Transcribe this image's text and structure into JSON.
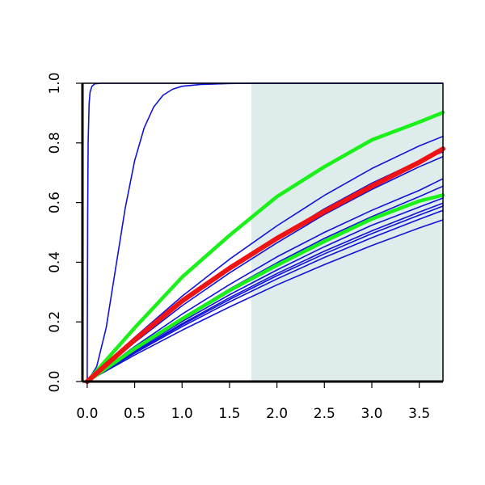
{
  "chart_data": {
    "type": "line",
    "title": "",
    "xlabel": "",
    "ylabel": "",
    "xlim": [
      -0.05,
      3.75
    ],
    "ylim": [
      0.0,
      1.0
    ],
    "x_ticks": [
      0.0,
      0.5,
      1.0,
      1.5,
      2.0,
      2.5,
      3.0,
      3.5
    ],
    "x_tick_labels": [
      "0.0",
      "0.5",
      "1.0",
      "1.5",
      "2.0",
      "2.5",
      "3.0",
      "3.5"
    ],
    "y_ticks": [
      0.0,
      0.2,
      0.4,
      0.6,
      0.8,
      1.0
    ],
    "y_tick_labels": [
      "0.0",
      "0.2",
      "0.4",
      "0.6",
      "0.8",
      "1.0"
    ],
    "shaded_region": {
      "x_from": 1.73,
      "x_to": 3.75,
      "color": "#deeceb"
    },
    "colors": {
      "blue": "#1212d8",
      "green": "#19f119",
      "red": "#f01313"
    },
    "series": [
      {
        "color": "#1212d8",
        "width": 1.6,
        "x": [
          0,
          0.005,
          0.01,
          0.02,
          0.03,
          0.05,
          0.08,
          0.15,
          3.75
        ],
        "y": [
          0,
          0.55,
          0.8,
          0.93,
          0.97,
          0.99,
          0.998,
          1.0,
          1.0
        ]
      },
      {
        "color": "#1212d8",
        "width": 1.6,
        "x": [
          0,
          0.1,
          0.2,
          0.3,
          0.4,
          0.5,
          0.6,
          0.7,
          0.8,
          0.9,
          1.0,
          1.2,
          1.5,
          1.8,
          3.75
        ],
        "y": [
          0,
          0.05,
          0.18,
          0.38,
          0.58,
          0.74,
          0.85,
          0.92,
          0.96,
          0.98,
          0.99,
          0.996,
          0.999,
          1.0,
          1.0
        ]
      },
      {
        "color": "#1212d8",
        "width": 1.6,
        "x": [
          0,
          0.5,
          1.0,
          1.5,
          2.0,
          2.5,
          3.0,
          3.5,
          3.75
        ],
        "y": [
          0,
          0.131,
          0.254,
          0.364,
          0.465,
          0.56,
          0.644,
          0.72,
          0.754
        ]
      },
      {
        "color": "#1212d8",
        "width": 1.6,
        "x": [
          0,
          0.5,
          1.0,
          1.5,
          2.0,
          2.5,
          3.0,
          3.5,
          3.75
        ],
        "y": [
          0,
          0.136,
          0.263,
          0.377,
          0.481,
          0.579,
          0.665,
          0.74,
          0.77
        ]
      },
      {
        "color": "#1212d8",
        "width": 1.6,
        "x": [
          0,
          0.5,
          1.0,
          1.5,
          2.0,
          2.5,
          3.0,
          3.5,
          3.75
        ],
        "y": [
          0,
          0.148,
          0.286,
          0.41,
          0.522,
          0.624,
          0.714,
          0.79,
          0.822
        ]
      },
      {
        "color": "#1212d8",
        "width": 1.6,
        "x": [
          0,
          0.5,
          1.0,
          1.5,
          2.0,
          2.5,
          3.0,
          3.5,
          3.75
        ],
        "y": [
          0,
          0.117,
          0.226,
          0.325,
          0.418,
          0.5,
          0.574,
          0.641,
          0.68
        ]
      },
      {
        "color": "#1212d8",
        "width": 1.6,
        "x": [
          0,
          0.5,
          1.0,
          1.5,
          2.0,
          2.5,
          3.0,
          3.5,
          3.75
        ],
        "y": [
          0,
          0.111,
          0.214,
          0.31,
          0.398,
          0.48,
          0.553,
          0.62,
          0.655
        ]
      },
      {
        "color": "#1212d8",
        "width": 1.6,
        "x": [
          0,
          0.5,
          1.0,
          1.5,
          2.0,
          2.5,
          3.0,
          3.5,
          3.75
        ],
        "y": [
          0,
          0.104,
          0.201,
          0.291,
          0.374,
          0.452,
          0.524,
          0.585,
          0.615
        ]
      },
      {
        "color": "#1212d8",
        "width": 1.6,
        "x": [
          0,
          0.5,
          1.0,
          1.5,
          2.0,
          2.5,
          3.0,
          3.5,
          3.75
        ],
        "y": [
          0,
          0.1,
          0.194,
          0.281,
          0.362,
          0.437,
          0.505,
          0.568,
          0.598
        ]
      },
      {
        "color": "#1212d8",
        "width": 1.6,
        "x": [
          0,
          0.5,
          1.0,
          1.5,
          2.0,
          2.5,
          3.0,
          3.5,
          3.75
        ],
        "y": [
          0,
          0.098,
          0.19,
          0.275,
          0.355,
          0.428,
          0.496,
          0.558,
          0.588
        ]
      },
      {
        "color": "#1212d8",
        "width": 1.6,
        "x": [
          0,
          0.5,
          1.0,
          1.5,
          2.0,
          2.5,
          3.0,
          3.5,
          3.75
        ],
        "y": [
          0,
          0.095,
          0.184,
          0.267,
          0.344,
          0.416,
          0.482,
          0.544,
          0.574
        ]
      },
      {
        "color": "#1212d8",
        "width": 1.6,
        "x": [
          0,
          0.5,
          1.0,
          1.5,
          2.0,
          2.5,
          3.0,
          3.5,
          3.75
        ],
        "y": [
          0,
          0.089,
          0.172,
          0.25,
          0.324,
          0.392,
          0.456,
          0.515,
          0.542
        ]
      },
      {
        "color": "#19f119",
        "width": 4.5,
        "x": [
          0,
          0.5,
          1.0,
          1.5,
          2.0,
          2.5,
          3.0,
          3.5,
          3.75
        ],
        "y": [
          0,
          0.18,
          0.35,
          0.49,
          0.62,
          0.72,
          0.81,
          0.87,
          0.902
        ]
      },
      {
        "color": "#19f119",
        "width": 4.5,
        "x": [
          0,
          0.5,
          1.0,
          1.5,
          2.0,
          2.5,
          3.0,
          3.5,
          3.75
        ],
        "y": [
          0,
          0.11,
          0.21,
          0.305,
          0.39,
          0.47,
          0.545,
          0.605,
          0.625
        ]
      },
      {
        "color": "#f01313",
        "width": 6.0,
        "x": [
          0,
          0.5,
          1.0,
          1.5,
          2.0,
          2.5,
          3.0,
          3.5,
          3.75
        ],
        "y": [
          0,
          0.14,
          0.27,
          0.38,
          0.48,
          0.57,
          0.655,
          0.735,
          0.78
        ]
      }
    ]
  }
}
